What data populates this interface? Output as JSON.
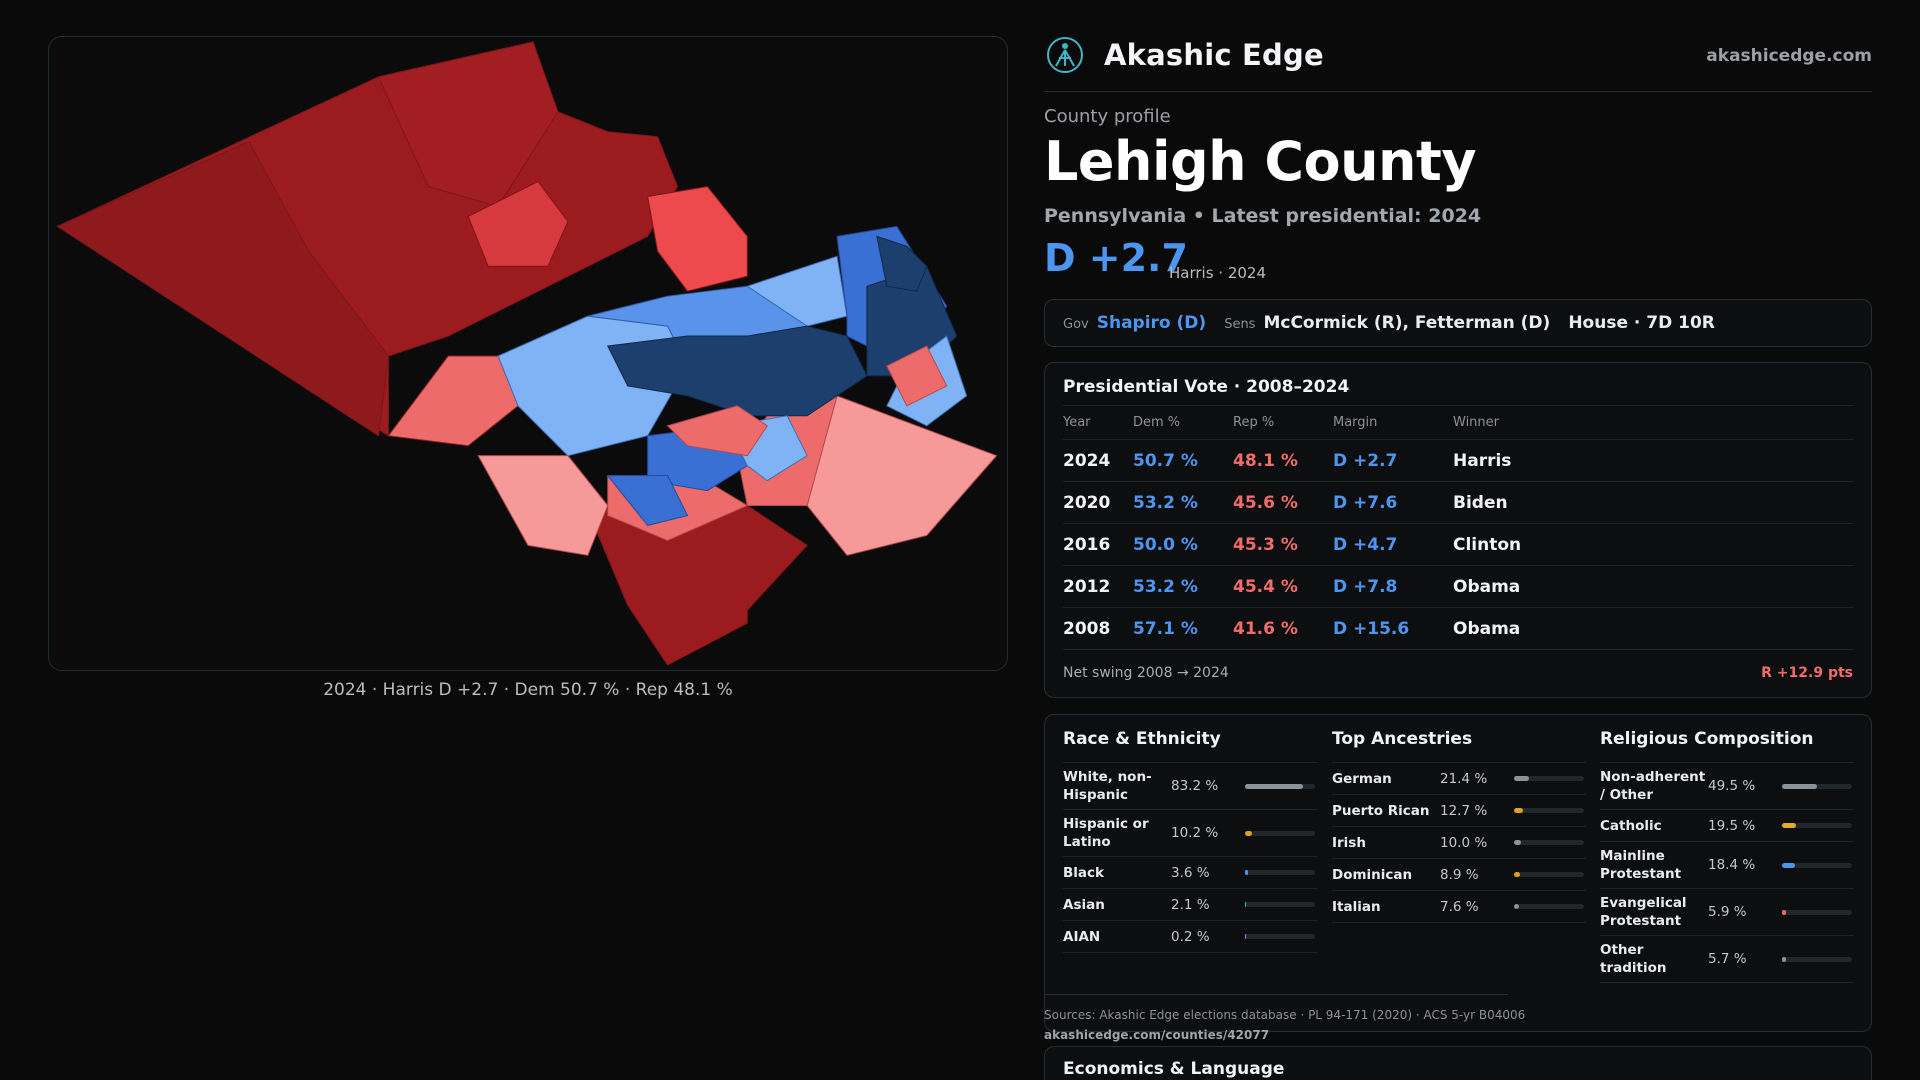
{
  "brand": {
    "name": "Akashic Edge",
    "url": "akashicedge.com"
  },
  "profile": {
    "kicker": "County profile",
    "title": "Lehigh County",
    "subtitle": "Pennsylvania • Latest presidential: 2024",
    "margin": "D +2.7",
    "margin_note": "Harris · 2024"
  },
  "officials": {
    "gov_label": "Gov",
    "gov": "Shapiro (D)",
    "sens_label": "Sens",
    "sens": "McCormick (R), Fetterman (D)",
    "house": "House · 7D 10R"
  },
  "presidential": {
    "title": "Presidential Vote · 2008–2024",
    "headers": [
      "Year",
      "Dem %",
      "Rep %",
      "Margin",
      "Winner"
    ],
    "rows": [
      [
        "2024",
        "50.7 %",
        "48.1 %",
        "D +2.7",
        "Harris"
      ],
      [
        "2020",
        "53.2 %",
        "45.6 %",
        "D +7.6",
        "Biden"
      ],
      [
        "2016",
        "50.0 %",
        "45.3 %",
        "D +4.7",
        "Clinton"
      ],
      [
        "2012",
        "53.2 %",
        "45.4 %",
        "D +7.8",
        "Obama"
      ],
      [
        "2008",
        "57.1 %",
        "41.6 %",
        "D +15.6",
        "Obama"
      ]
    ],
    "swing_label": "Net swing 2008 → 2024",
    "swing_value": "R +12.9 pts"
  },
  "race": {
    "title": "Race & Ethnicity",
    "items": [
      {
        "label": "White, non-Hispanic",
        "value": "83.2 %",
        "pct": 83.2,
        "color": "#8a929a"
      },
      {
        "label": "Hispanic or Latino",
        "value": "10.2 %",
        "pct": 10.2,
        "color": "#e0a020"
      },
      {
        "label": "Black",
        "value": "3.6 %",
        "pct": 3.6,
        "color": "#4c96f2"
      },
      {
        "label": "Asian",
        "value": "2.1 %",
        "pct": 2.1,
        "color": "#3fb6a8"
      },
      {
        "label": "AIAN",
        "value": "0.2 %",
        "pct": 0.2,
        "color": "#c070e0"
      }
    ]
  },
  "ancestry": {
    "title": "Top Ancestries",
    "items": [
      {
        "label": "German",
        "value": "21.4 %",
        "pct": 21.4,
        "color": "#8a929a"
      },
      {
        "label": "Puerto Rican",
        "value": "12.7 %",
        "pct": 12.7,
        "color": "#e0a020"
      },
      {
        "label": "Irish",
        "value": "10.0 %",
        "pct": 10.0,
        "color": "#8a929a"
      },
      {
        "label": "Dominican",
        "value": "8.9 %",
        "pct": 8.9,
        "color": "#e0a020"
      },
      {
        "label": "Italian",
        "value": "7.6 %",
        "pct": 7.6,
        "color": "#8a929a"
      }
    ]
  },
  "religion": {
    "title": "Religious Composition",
    "items": [
      {
        "label": "Non-adherent / Other",
        "value": "49.5 %",
        "pct": 49.5,
        "color": "#8a929a"
      },
      {
        "label": "Catholic",
        "value": "19.5 %",
        "pct": 19.5,
        "color": "#e0b020"
      },
      {
        "label": "Mainline Protestant",
        "value": "18.4 %",
        "pct": 18.4,
        "color": "#4c96f2"
      },
      {
        "label": "Evangelical Protestant",
        "value": "5.9 %",
        "pct": 5.9,
        "color": "#f36b6b"
      },
      {
        "label": "Other tradition",
        "value": "5.7 %",
        "pct": 5.7,
        "color": "#8a929a"
      }
    ]
  },
  "sources": {
    "text": "Sources: Akashic Edge elections database · PL 94-171 (2020) · ACS 5-yr B04006",
    "url": "akashicedge.com/counties/42077"
  },
  "econ": {
    "title": "Economics & Language"
  },
  "map": {
    "caption": "2024 · Harris D +2.7 · Dem 50.7 % · Rep 48.1 %",
    "colors": {
      "safe_r": "#9b1b1f",
      "likely_r": "#d63a3e",
      "lean_r": "#ee6b6b",
      "tilt_r": "#f59a98",
      "tilt_d": "#7fb3f5",
      "lean_d": "#5a93ea",
      "likely_d": "#3a6fd4",
      "safe_d": "#1d3f6e"
    }
  }
}
